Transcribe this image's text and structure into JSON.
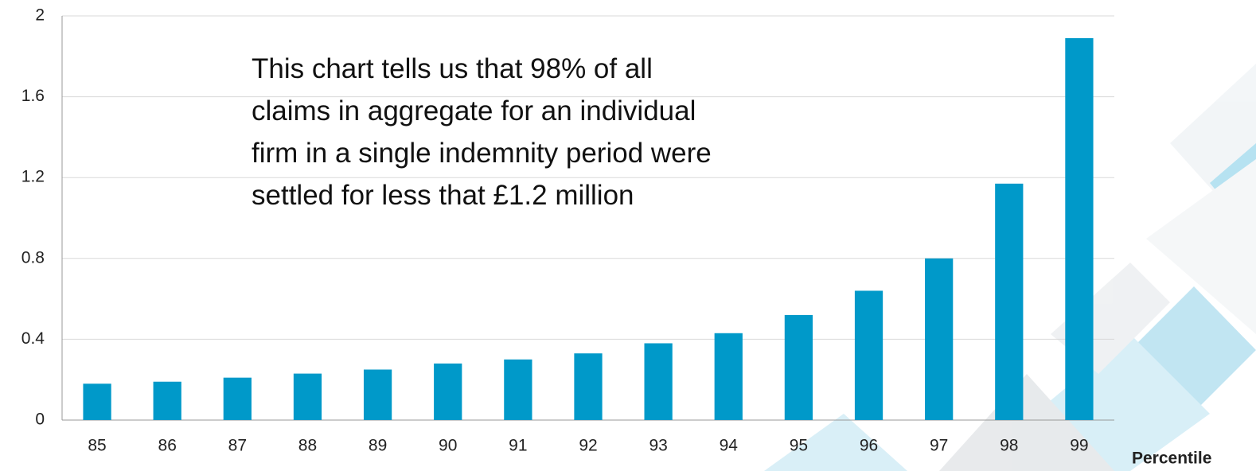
{
  "chart_data": {
    "type": "bar",
    "x_label": "Percentile",
    "annotation": [
      "This chart tells us that 98% of all",
      "claims in aggregate for an individual",
      "firm in a single indemnity period were",
      "settled for less that £1.2 million"
    ],
    "categories": [
      "85",
      "86",
      "87",
      "88",
      "89",
      "90",
      "91",
      "92",
      "93",
      "94",
      "95",
      "96",
      "97",
      "98",
      "99"
    ],
    "values": [
      0.18,
      0.19,
      0.21,
      0.23,
      0.25,
      0.28,
      0.3,
      0.33,
      0.38,
      0.43,
      0.52,
      0.64,
      0.8,
      1.17,
      1.89
    ],
    "color": "#0099c9",
    "ylim": [
      0,
      2
    ],
    "yticks": [
      0,
      0.4,
      0.8,
      1.2,
      1.6,
      2
    ],
    "grid": true
  }
}
